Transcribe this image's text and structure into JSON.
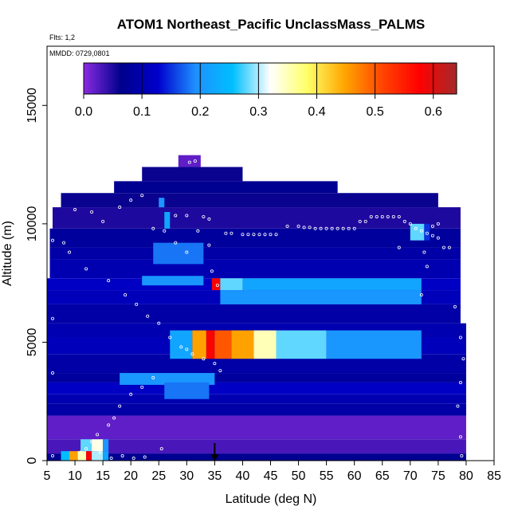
{
  "chart_data": {
    "type": "heatmap",
    "title": "ATOM1 Northeast_Pacific UnclassMass_PALMS",
    "flights_label": "Flts: 1,2",
    "date_label": "MMDD: 0729,0801",
    "xlabel": "Latitude (deg N)",
    "ylabel": "Altitude (m)",
    "xlim": [
      5,
      85
    ],
    "ylim": [
      0,
      17500
    ],
    "x_ticks": [
      5,
      10,
      15,
      20,
      25,
      30,
      35,
      40,
      45,
      50,
      55,
      60,
      65,
      70,
      75,
      80,
      85
    ],
    "y_ticks": [
      0,
      5000,
      10000,
      15000
    ],
    "colorbar": {
      "min": 0,
      "max": 0.64,
      "ticks": [
        0.0,
        0.1,
        0.2,
        0.3,
        0.4,
        0.5,
        0.6
      ],
      "tick_labels": [
        "0.0",
        "0.1",
        "0.2",
        "0.3",
        "0.4",
        "0.5",
        "0.6"
      ],
      "colors": [
        "#8a2be2",
        "#00008b",
        "#0000cd",
        "#1e90ff",
        "#00bfff",
        "#ffffff",
        "#ffff66",
        "#ffa500",
        "#ff4500",
        "#ff0000",
        "#a52a2a"
      ]
    },
    "marker_latitude": 35,
    "grid": false,
    "legend": "colorbar top",
    "bands": [
      {
        "alt": [
          12400,
          12900
        ],
        "lat": [
          28.5,
          32.5
        ],
        "value": 0.02
      },
      {
        "alt": [
          11800,
          12400
        ],
        "lat": [
          22,
          40
        ],
        "value": 0.06
      },
      {
        "alt": [
          11300,
          11800
        ],
        "lat": [
          17,
          57
        ],
        "value": 0.07
      },
      {
        "alt": [
          10700,
          11300
        ],
        "lat": [
          7.5,
          75
        ],
        "value": 0.06
      },
      {
        "alt": [
          9800,
          10700
        ],
        "lat": [
          6,
          79
        ],
        "value": 0.05
      },
      {
        "alt": [
          9000,
          9800
        ],
        "lat": [
          5.5,
          79
        ],
        "value": 0.08
      },
      {
        "alt": [
          8500,
          9000
        ],
        "lat": [
          5.5,
          79
        ],
        "value": 0.09
      },
      {
        "alt": [
          7700,
          8500
        ],
        "lat": [
          5.5,
          79
        ],
        "value": 0.1
      },
      {
        "alt": [
          7200,
          7700
        ],
        "lat": [
          5,
          79
        ],
        "value": 0.12
      },
      {
        "alt": [
          6600,
          7200
        ],
        "lat": [
          5,
          79
        ],
        "value": 0.11
      },
      {
        "alt": [
          5800,
          6600
        ],
        "lat": [
          5,
          79
        ],
        "value": 0.09
      },
      {
        "alt": [
          5200,
          5800
        ],
        "lat": [
          5,
          80
        ],
        "value": 0.1
      },
      {
        "alt": [
          4500,
          5200
        ],
        "lat": [
          5,
          80
        ],
        "value": 0.11
      },
      {
        "alt": [
          3700,
          4500
        ],
        "lat": [
          5,
          80
        ],
        "value": 0.09
      },
      {
        "alt": [
          3300,
          3700
        ],
        "lat": [
          5,
          80
        ],
        "value": 0.08
      },
      {
        "alt": [
          2800,
          3300
        ],
        "lat": [
          5,
          80
        ],
        "value": 0.12
      },
      {
        "alt": [
          2400,
          2800
        ],
        "lat": [
          5,
          80
        ],
        "value": 0.1
      },
      {
        "alt": [
          1900,
          2400
        ],
        "lat": [
          5,
          80
        ],
        "value": 0.09
      },
      {
        "alt": [
          900,
          1900
        ],
        "lat": [
          5,
          80
        ],
        "value": 0.02
      },
      {
        "alt": [
          300,
          900
        ],
        "lat": [
          5,
          80
        ],
        "value": 0.03
      },
      {
        "alt": [
          0,
          300
        ],
        "lat": [
          5,
          80
        ],
        "value": 0.07
      }
    ],
    "features": [
      {
        "alt": [
          7200,
          7700
        ],
        "lat": [
          34.5,
          36
        ],
        "value": 0.58
      },
      {
        "alt": [
          7200,
          7700
        ],
        "lat": [
          36,
          40
        ],
        "value": 0.28
      },
      {
        "alt": [
          7200,
          7700
        ],
        "lat": [
          40,
          72
        ],
        "value": 0.22
      },
      {
        "alt": [
          6600,
          7200
        ],
        "lat": [
          36,
          72
        ],
        "value": 0.2
      },
      {
        "alt": [
          4300,
          5500
        ],
        "lat": [
          27,
          31
        ],
        "value": 0.22
      },
      {
        "alt": [
          4300,
          5500
        ],
        "lat": [
          31,
          33.5
        ],
        "value": 0.45
      },
      {
        "alt": [
          4300,
          5500
        ],
        "lat": [
          33.5,
          35
        ],
        "value": 0.58
      },
      {
        "alt": [
          4300,
          5500
        ],
        "lat": [
          35,
          38
        ],
        "value": 0.5
      },
      {
        "alt": [
          4300,
          5500
        ],
        "lat": [
          38,
          42
        ],
        "value": 0.45
      },
      {
        "alt": [
          4300,
          5500
        ],
        "lat": [
          42,
          46
        ],
        "value": 0.35
      },
      {
        "alt": [
          4300,
          5500
        ],
        "lat": [
          46,
          55
        ],
        "value": 0.28
      },
      {
        "alt": [
          4300,
          5500
        ],
        "lat": [
          55,
          72
        ],
        "value": 0.2
      },
      {
        "alt": [
          8300,
          9200
        ],
        "lat": [
          24,
          33
        ],
        "value": 0.18
      },
      {
        "alt": [
          7400,
          7800
        ],
        "lat": [
          22,
          33
        ],
        "value": 0.2
      },
      {
        "alt": [
          3200,
          3700
        ],
        "lat": [
          18,
          35
        ],
        "value": 0.2
      },
      {
        "alt": [
          2600,
          3300
        ],
        "lat": [
          26,
          34
        ],
        "value": 0.18
      },
      {
        "alt": [
          9300,
          10000
        ],
        "lat": [
          70,
          72.5
        ],
        "value": 0.28
      },
      {
        "alt": [
          9300,
          10000
        ],
        "lat": [
          72.5,
          73.5
        ],
        "value": 0.15
      },
      {
        "alt": [
          9800,
          10500
        ],
        "lat": [
          26,
          27
        ],
        "value": 0.22
      },
      {
        "alt": [
          10700,
          11100
        ],
        "lat": [
          25,
          26
        ],
        "value": 0.2
      },
      {
        "alt": [
          0,
          400
        ],
        "lat": [
          7.5,
          9
        ],
        "value": 0.25
      },
      {
        "alt": [
          0,
          400
        ],
        "lat": [
          9,
          10.5
        ],
        "value": 0.45
      },
      {
        "alt": [
          0,
          400
        ],
        "lat": [
          10.5,
          12
        ],
        "value": 0.35
      },
      {
        "alt": [
          0,
          400
        ],
        "lat": [
          12,
          13
        ],
        "value": 0.58
      },
      {
        "alt": [
          0,
          400
        ],
        "lat": [
          13,
          15
        ],
        "value": 0.3
      },
      {
        "alt": [
          0,
          400
        ],
        "lat": [
          15,
          16
        ],
        "value": 0.22
      },
      {
        "alt": [
          400,
          900
        ],
        "lat": [
          11,
          13
        ],
        "value": 0.28
      },
      {
        "alt": [
          400,
          900
        ],
        "lat": [
          13,
          15
        ],
        "value": 0.33
      },
      {
        "alt": [
          400,
          900
        ],
        "lat": [
          15,
          16
        ],
        "value": 0.2
      }
    ],
    "sample_points": [
      [
        30.5,
        12600
      ],
      [
        31.5,
        12650
      ],
      [
        22,
        11200
      ],
      [
        20,
        11000
      ],
      [
        18,
        10700
      ],
      [
        13,
        10500
      ],
      [
        28,
        10350
      ],
      [
        30,
        10350
      ],
      [
        33,
        10300
      ],
      [
        34,
        10200
      ],
      [
        37,
        9600
      ],
      [
        38,
        9600
      ],
      [
        40,
        9550
      ],
      [
        41,
        9550
      ],
      [
        42,
        9550
      ],
      [
        43,
        9550
      ],
      [
        44,
        9550
      ],
      [
        45,
        9550
      ],
      [
        46,
        9550
      ],
      [
        48,
        9900
      ],
      [
        50,
        9900
      ],
      [
        51,
        9850
      ],
      [
        52,
        9850
      ],
      [
        53,
        9800
      ],
      [
        54,
        9800
      ],
      [
        55,
        9800
      ],
      [
        56,
        9800
      ],
      [
        57,
        9800
      ],
      [
        58,
        9800
      ],
      [
        59,
        9800
      ],
      [
        60,
        9800
      ],
      [
        61,
        10100
      ],
      [
        62,
        10100
      ],
      [
        63,
        10300
      ],
      [
        64,
        10300
      ],
      [
        65,
        10300
      ],
      [
        66,
        10300
      ],
      [
        67,
        10300
      ],
      [
        68,
        10300
      ],
      [
        69,
        10100
      ],
      [
        70,
        10000
      ],
      [
        71,
        9800
      ],
      [
        72,
        9700
      ],
      [
        73,
        9600
      ],
      [
        74,
        9500
      ],
      [
        75,
        9400
      ],
      [
        76,
        9000
      ],
      [
        77,
        9000
      ],
      [
        8,
        9200
      ],
      [
        9,
        8800
      ],
      [
        12,
        8100
      ],
      [
        16,
        7600
      ],
      [
        19,
        7000
      ],
      [
        21,
        6600
      ],
      [
        23,
        6100
      ],
      [
        25,
        5800
      ],
      [
        27,
        5200
      ],
      [
        29,
        4800
      ],
      [
        31,
        4500
      ],
      [
        33,
        4300
      ],
      [
        35,
        4100
      ],
      [
        36,
        3800
      ],
      [
        24,
        3500
      ],
      [
        22,
        3100
      ],
      [
        20,
        2800
      ],
      [
        18,
        2300
      ],
      [
        17,
        1800
      ],
      [
        16,
        1500
      ],
      [
        14,
        1100
      ],
      [
        13,
        800
      ],
      [
        12,
        500
      ],
      [
        11,
        350
      ],
      [
        14.5,
        350
      ],
      [
        16.5,
        100
      ],
      [
        18.5,
        200
      ],
      [
        20.5,
        100
      ],
      [
        22.5,
        150
      ],
      [
        25.5,
        500
      ],
      [
        30,
        4700
      ],
      [
        34.5,
        8000
      ],
      [
        35.5,
        7400
      ],
      [
        73,
        8200
      ],
      [
        72.5,
        8800
      ],
      [
        78,
        6500
      ],
      [
        79,
        5200
      ],
      [
        79.5,
        4300
      ],
      [
        79,
        3300
      ],
      [
        78.5,
        2300
      ],
      [
        79,
        1000
      ],
      [
        79.2,
        200
      ],
      [
        10,
        10600
      ],
      [
        6,
        9300
      ],
      [
        6,
        6000
      ],
      [
        6,
        3700
      ],
      [
        6,
        200
      ],
      [
        15,
        10100
      ],
      [
        24,
        9800
      ],
      [
        26,
        9700
      ],
      [
        28,
        9200
      ],
      [
        30,
        8800
      ],
      [
        32,
        9700
      ],
      [
        34,
        9100
      ],
      [
        68,
        9000
      ],
      [
        72,
        7000
      ],
      [
        74,
        9900
      ],
      [
        75,
        10000
      ]
    ]
  }
}
